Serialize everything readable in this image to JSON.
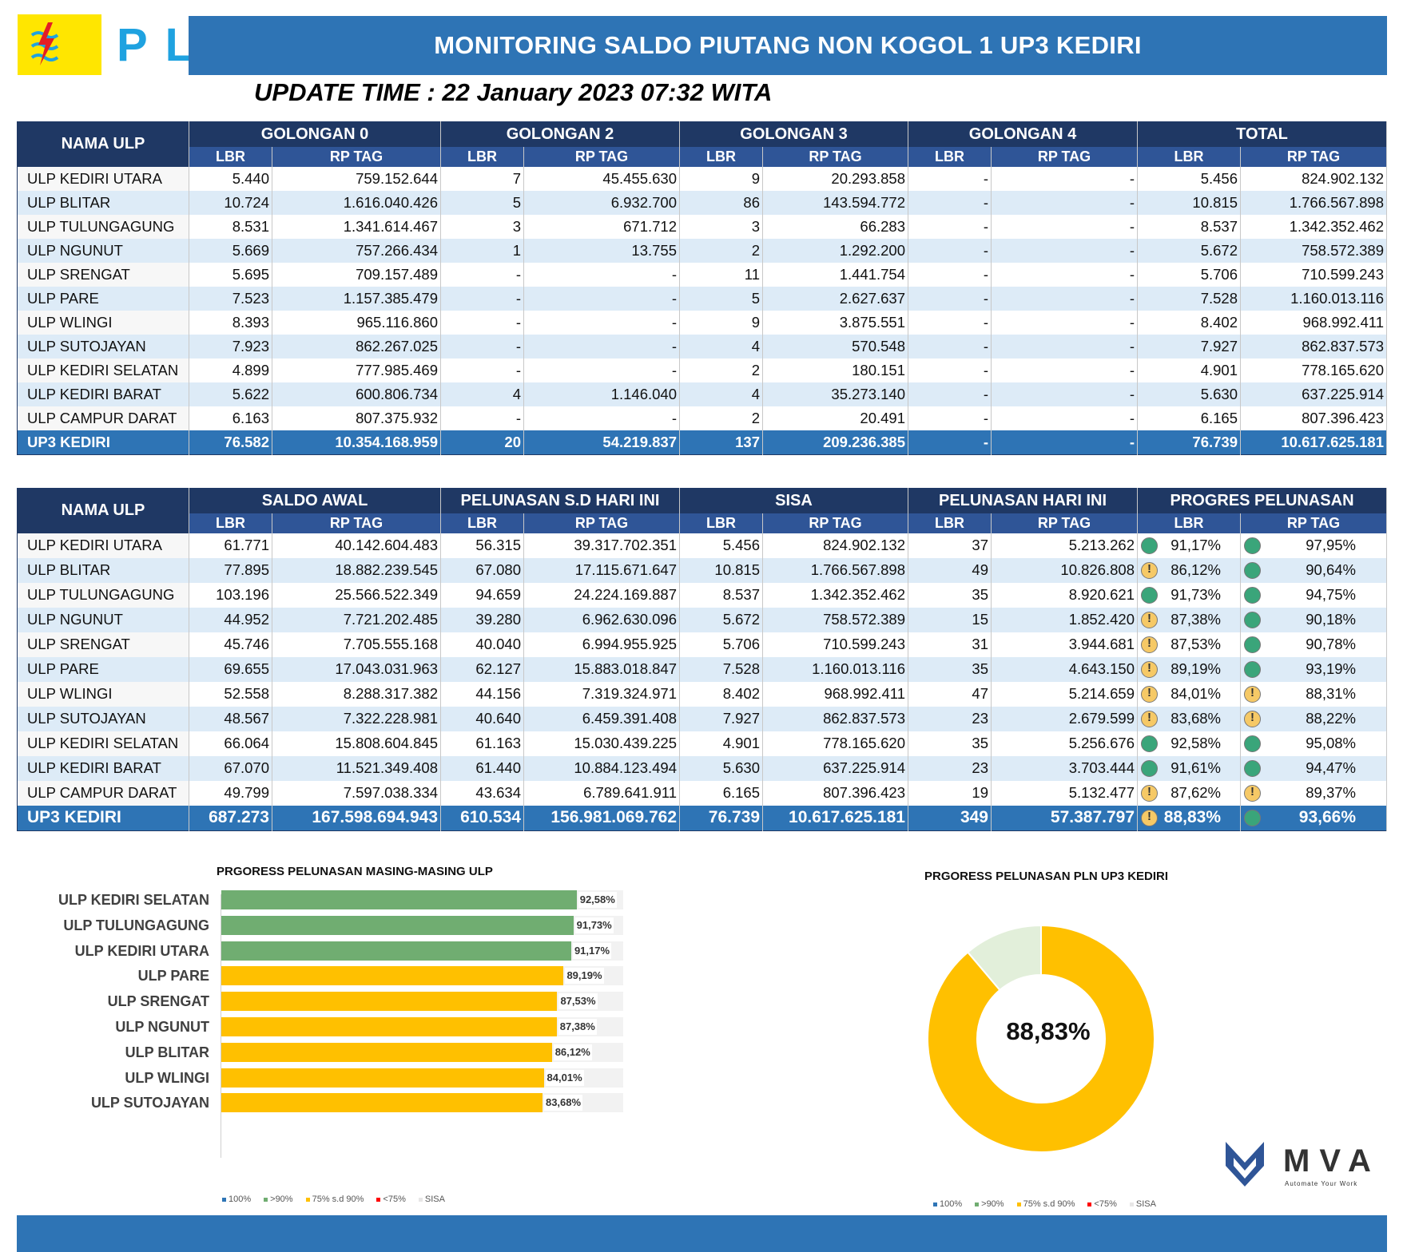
{
  "header": {
    "logo_text": "PLN",
    "title": "MONITORING SALDO PIUTANG NON KOGOL 1 UP3 KEDIRI",
    "update_time": "UPDATE TIME :  22 January 2023 07:32 WITA"
  },
  "table1": {
    "nama_header": "NAMA ULP",
    "groups": [
      "GOLONGAN 0",
      "GOLONGAN 2",
      "GOLONGAN 3",
      "GOLONGAN 4",
      "TOTAL"
    ],
    "sub_lbr": "LBR",
    "sub_rp": "RP TAG",
    "rows": [
      [
        "ULP KEDIRI UTARA",
        "5.440",
        "759.152.644",
        "7",
        "45.455.630",
        "9",
        "20.293.858",
        "-",
        "-",
        "5.456",
        "824.902.132"
      ],
      [
        "ULP BLITAR",
        "10.724",
        "1.616.040.426",
        "5",
        "6.932.700",
        "86",
        "143.594.772",
        "-",
        "-",
        "10.815",
        "1.766.567.898"
      ],
      [
        "ULP TULUNGAGUNG",
        "8.531",
        "1.341.614.467",
        "3",
        "671.712",
        "3",
        "66.283",
        "-",
        "-",
        "8.537",
        "1.342.352.462"
      ],
      [
        "ULP NGUNUT",
        "5.669",
        "757.266.434",
        "1",
        "13.755",
        "2",
        "1.292.200",
        "-",
        "-",
        "5.672",
        "758.572.389"
      ],
      [
        "ULP SRENGAT",
        "5.695",
        "709.157.489",
        "-",
        "-",
        "11",
        "1.441.754",
        "-",
        "-",
        "5.706",
        "710.599.243"
      ],
      [
        "ULP PARE",
        "7.523",
        "1.157.385.479",
        "-",
        "-",
        "5",
        "2.627.637",
        "-",
        "-",
        "7.528",
        "1.160.013.116"
      ],
      [
        "ULP WLINGI",
        "8.393",
        "965.116.860",
        "-",
        "-",
        "9",
        "3.875.551",
        "-",
        "-",
        "8.402",
        "968.992.411"
      ],
      [
        "ULP SUTOJAYAN",
        "7.923",
        "862.267.025",
        "-",
        "-",
        "4",
        "570.548",
        "-",
        "-",
        "7.927",
        "862.837.573"
      ],
      [
        "ULP KEDIRI SELATAN",
        "4.899",
        "777.985.469",
        "-",
        "-",
        "2",
        "180.151",
        "-",
        "-",
        "4.901",
        "778.165.620"
      ],
      [
        "ULP KEDIRI BARAT",
        "5.622",
        "600.806.734",
        "4",
        "1.146.040",
        "4",
        "35.273.140",
        "-",
        "-",
        "5.630",
        "637.225.914"
      ],
      [
        "ULP CAMPUR DARAT",
        "6.163",
        "807.375.932",
        "-",
        "-",
        "2",
        "20.491",
        "-",
        "-",
        "6.165",
        "807.396.423"
      ]
    ],
    "total": [
      "UP3 KEDIRI",
      "76.582",
      "10.354.168.959",
      "20",
      "54.219.837",
      "137",
      "209.236.385",
      "-",
      "-",
      "76.739",
      "10.617.625.181"
    ]
  },
  "table2": {
    "nama_header": "NAMA ULP",
    "groups": [
      "SALDO AWAL",
      "PELUNASAN S.D HARI INI",
      "SISA",
      "PELUNASAN HARI INI",
      "PROGRES PELUNASAN"
    ],
    "sub_lbr": "LBR",
    "sub_rp": "RP TAG",
    "rows": [
      {
        "cells": [
          "ULP KEDIRI UTARA",
          "61.771",
          "40.142.604.483",
          "56.315",
          "39.317.702.351",
          "5.456",
          "824.902.132",
          "37",
          "5.213.262",
          "91,17%",
          "97,95%"
        ],
        "status": [
          "good",
          "good"
        ]
      },
      {
        "cells": [
          "ULP BLITAR",
          "77.895",
          "18.882.239.545",
          "67.080",
          "17.115.671.647",
          "10.815",
          "1.766.567.898",
          "49",
          "10.826.808",
          "86,12%",
          "90,64%"
        ],
        "status": [
          "warn",
          "good"
        ]
      },
      {
        "cells": [
          "ULP TULUNGAGUNG",
          "103.196",
          "25.566.522.349",
          "94.659",
          "24.224.169.887",
          "8.537",
          "1.342.352.462",
          "35",
          "8.920.621",
          "91,73%",
          "94,75%"
        ],
        "status": [
          "good",
          "good"
        ]
      },
      {
        "cells": [
          "ULP NGUNUT",
          "44.952",
          "7.721.202.485",
          "39.280",
          "6.962.630.096",
          "5.672",
          "758.572.389",
          "15",
          "1.852.420",
          "87,38%",
          "90,18%"
        ],
        "status": [
          "warn",
          "good"
        ]
      },
      {
        "cells": [
          "ULP SRENGAT",
          "45.746",
          "7.705.555.168",
          "40.040",
          "6.994.955.925",
          "5.706",
          "710.599.243",
          "31",
          "3.944.681",
          "87,53%",
          "90,78%"
        ],
        "status": [
          "warn",
          "good"
        ]
      },
      {
        "cells": [
          "ULP PARE",
          "69.655",
          "17.043.031.963",
          "62.127",
          "15.883.018.847",
          "7.528",
          "1.160.013.116",
          "35",
          "4.643.150",
          "89,19%",
          "93,19%"
        ],
        "status": [
          "warn",
          "good"
        ]
      },
      {
        "cells": [
          "ULP WLINGI",
          "52.558",
          "8.288.317.382",
          "44.156",
          "7.319.324.971",
          "8.402",
          "968.992.411",
          "47",
          "5.214.659",
          "84,01%",
          "88,31%"
        ],
        "status": [
          "warn",
          "warn"
        ]
      },
      {
        "cells": [
          "ULP SUTOJAYAN",
          "48.567",
          "7.322.228.981",
          "40.640",
          "6.459.391.408",
          "7.927",
          "862.837.573",
          "23",
          "2.679.599",
          "83,68%",
          "88,22%"
        ],
        "status": [
          "warn",
          "warn"
        ]
      },
      {
        "cells": [
          "ULP KEDIRI SELATAN",
          "66.064",
          "15.808.604.845",
          "61.163",
          "15.030.439.225",
          "4.901",
          "778.165.620",
          "35",
          "5.256.676",
          "92,58%",
          "95,08%"
        ],
        "status": [
          "good",
          "good"
        ]
      },
      {
        "cells": [
          "ULP KEDIRI BARAT",
          "67.070",
          "11.521.349.408",
          "61.440",
          "10.884.123.494",
          "5.630",
          "637.225.914",
          "23",
          "3.703.444",
          "91,61%",
          "94,47%"
        ],
        "status": [
          "good",
          "good"
        ]
      },
      {
        "cells": [
          "ULP CAMPUR DARAT",
          "49.799",
          "7.597.038.334",
          "43.634",
          "6.789.641.911",
          "6.165",
          "807.396.423",
          "19",
          "5.132.477",
          "87,62%",
          "89,37%"
        ],
        "status": [
          "warn",
          "warn"
        ]
      }
    ],
    "total": {
      "cells": [
        "UP3 KEDIRI",
        "687.273",
        "167.598.694.943",
        "610.534",
        "156.981.069.762",
        "76.739",
        "10.617.625.181",
        "349",
        "57.387.797",
        "88,83%",
        "93,66%"
      ],
      "status": [
        "warn",
        "good"
      ]
    }
  },
  "colors": {
    "green": "#70ad71",
    "yellow": "#ffc000",
    "track": "#f2f2f2",
    "donut_rest": "#e2efda",
    "blue_100": "#2e75b6",
    "red_75": "#ff0000"
  },
  "legend": [
    {
      "label": "100%",
      "color": "#2e75b6"
    },
    {
      "label": ">90%",
      "color": "#70ad71"
    },
    {
      "label": "75% s.d 90%",
      "color": "#ffc000"
    },
    {
      "label": "<75%",
      "color": "#ff0000"
    },
    {
      "label": "SISA",
      "color": "#e7e6e6"
    }
  ],
  "chart_data": [
    {
      "type": "bar",
      "title": "PRGORESS PELUNASAN MASING-MASING ULP",
      "categories": [
        "ULP KEDIRI SELATAN",
        "ULP TULUNGAGUNG",
        "ULP KEDIRI UTARA",
        "ULP PARE",
        "ULP SRENGAT",
        "ULP NGUNUT",
        "ULP BLITAR",
        "ULP WLINGI",
        "ULP SUTOJAYAN"
      ],
      "values": [
        92.58,
        91.73,
        91.17,
        89.19,
        87.53,
        87.38,
        86.12,
        84.01,
        83.68
      ],
      "labels": [
        "92,58%",
        "91,73%",
        "91,17%",
        "89,19%",
        "87,53%",
        "87,38%",
        "86,12%",
        "84,01%",
        "83,68%"
      ],
      "status": [
        "good",
        "good",
        "good",
        "warn",
        "warn",
        "warn",
        "warn",
        "warn",
        "warn"
      ],
      "xlim": [
        0,
        100
      ],
      "orientation": "horizontal"
    },
    {
      "type": "pie",
      "title": "PRGORESS PELUNASAN PLN UP3 KEDIRI",
      "center_label": "88,83%",
      "values": [
        88.83,
        11.17
      ],
      "slices": [
        "75% s.d 90%",
        "SISA"
      ]
    }
  ],
  "mva": {
    "brand": "MVA",
    "tagline": "Automate Your Work"
  }
}
